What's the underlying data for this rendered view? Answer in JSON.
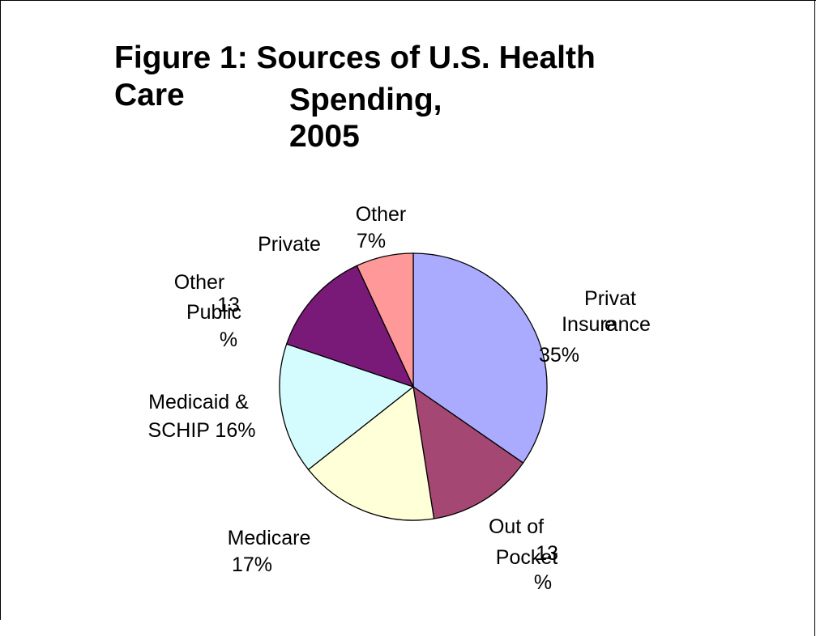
{
  "title": {
    "line1": "Figure 1: Sources of U.S. Health",
    "line2a": "Care",
    "line2b": "Spending,",
    "line3": "2005"
  },
  "chart_data": {
    "type": "pie",
    "title": "Figure 1: Sources of U.S. Health Care Spending, 2005",
    "unit": "%",
    "slices": [
      {
        "name": "Private Insurance",
        "value": 35,
        "color": "#aaaaff",
        "label_lines": [
          "Privat",
          "e",
          "Insurance",
          "35%"
        ]
      },
      {
        "name": "Out of Pocket",
        "value": 13,
        "color": "#a44873",
        "label_lines": [
          "Out of",
          "13",
          "Pocket",
          "%"
        ]
      },
      {
        "name": "Medicare",
        "value": 17,
        "color": "#ffffd8",
        "label_lines": [
          "Medicare",
          "17%"
        ]
      },
      {
        "name": "Medicaid & SCHIP",
        "value": 16,
        "color": "#d4fcff",
        "label_lines": [
          "Medicaid &",
          "SCHIP 16%"
        ]
      },
      {
        "name": "Other Public",
        "value": 13,
        "color": "#7a1a78",
        "label_lines": [
          "Other",
          "13",
          "Public",
          "%"
        ]
      },
      {
        "name": "Other Private",
        "value": 7,
        "color": "#ff9898",
        "label_lines": [
          "Private",
          "Other",
          "7%"
        ]
      }
    ]
  }
}
